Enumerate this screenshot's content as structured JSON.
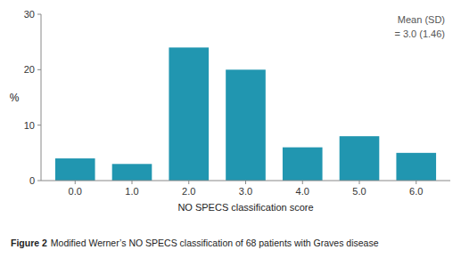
{
  "chart_data": {
    "type": "bar",
    "x": [
      0.0,
      1.0,
      2.0,
      3.0,
      4.0,
      5.0,
      6.0
    ],
    "values": [
      4,
      3,
      24,
      20,
      6,
      8,
      5
    ],
    "color": "#2196b0",
    "xlabel": "NO SPECS classification score",
    "ylabel": "%",
    "xlim": [
      -0.6,
      6.6
    ],
    "xticks": [
      {
        "value": 0.0,
        "label": "0.0"
      },
      {
        "value": 1.0,
        "label": "1.0"
      },
      {
        "value": 2.0,
        "label": "2.0"
      },
      {
        "value": 3.0,
        "label": "3.0"
      },
      {
        "value": 4.0,
        "label": "4.0"
      },
      {
        "value": 5.0,
        "label": "5.0"
      },
      {
        "value": 6.0,
        "label": "6.0"
      }
    ],
    "ylim": [
      0,
      30
    ],
    "yticks": [
      0,
      10,
      20,
      30
    ],
    "grid": false,
    "annotation": "Mean (SD)\n= 3.0 (1.46)",
    "caption_label": "Figure 2",
    "caption": "Modified Werner’s NO SPECS classification of 68 patients with Graves disease"
  }
}
